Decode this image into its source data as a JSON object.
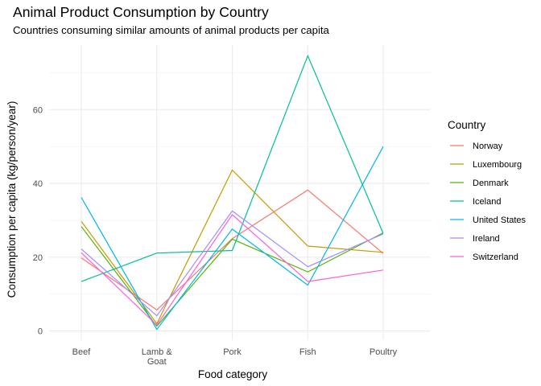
{
  "chart_data": {
    "type": "line",
    "title": "Animal Product Consumption by Country",
    "subtitle": "Countries consuming similar amounts of animal products per capita",
    "xlabel": "Food category",
    "ylabel": "Consumption per capita (kg/person/year)",
    "categories": [
      "Beef",
      "Lamb &\nGoat",
      "Pork",
      "Fish",
      "Poultry"
    ],
    "ylim": [
      -2.5,
      77.5
    ],
    "yticks": [
      0,
      20,
      40,
      60
    ],
    "grid": true,
    "legend_title": "Country",
    "legend_position": "right",
    "series": [
      {
        "name": "Norway",
        "color": "#F8766D",
        "values": [
          19.8,
          5.7,
          25.0,
          38.2,
          21.0
        ]
      },
      {
        "name": "Luxembourg",
        "color": "#C49A00",
        "values": [
          29.7,
          2.0,
          43.6,
          23.0,
          21.3
        ]
      },
      {
        "name": "Denmark",
        "color": "#53B400",
        "values": [
          28.3,
          1.3,
          24.9,
          16.0,
          26.6
        ]
      },
      {
        "name": "Iceland",
        "color": "#00C094",
        "values": [
          13.4,
          21.1,
          21.8,
          74.6,
          26.4
        ]
      },
      {
        "name": "United States",
        "color": "#00B6EB",
        "values": [
          36.2,
          0.4,
          27.6,
          12.4,
          50.0
        ]
      },
      {
        "name": "Ireland",
        "color": "#A58AFF",
        "values": [
          22.2,
          4.1,
          32.5,
          17.4,
          26.3
        ]
      },
      {
        "name": "Switzerland",
        "color": "#FB61D7",
        "values": [
          21.2,
          1.6,
          31.5,
          13.4,
          16.5
        ]
      }
    ]
  }
}
